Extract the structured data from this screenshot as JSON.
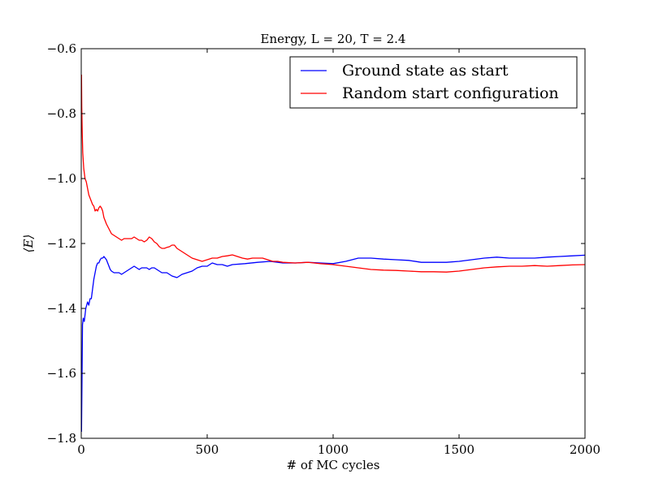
{
  "chart_data": {
    "type": "line",
    "title": "Energy, L = 20, T = 2.4",
    "xlabel": "# of MC cycles",
    "ylabel": "⟨E⟩",
    "xlim": [
      0,
      2000
    ],
    "ylim": [
      -1.8,
      -0.6
    ],
    "xticks": [
      0,
      500,
      1000,
      1500,
      2000
    ],
    "yticks": [
      -1.8,
      -1.6,
      -1.4,
      -1.2,
      -1.0,
      -0.8,
      -0.6
    ],
    "xtick_labels": [
      "0",
      "500",
      "1000",
      "1500",
      "2000"
    ],
    "ytick_labels": [
      "−1.8",
      "−1.6",
      "−1.4",
      "−1.2",
      "−1.0",
      "−0.8",
      "−0.6"
    ],
    "grid": false,
    "legend_position": "top-right",
    "series": [
      {
        "name": "Ground state as start",
        "color": "#0000ff",
        "x": [
          1,
          3,
          5,
          8,
          12,
          18,
          25,
          30,
          35,
          40,
          45,
          50,
          55,
          60,
          65,
          70,
          75,
          80,
          85,
          90,
          95,
          100,
          105,
          110,
          115,
          120,
          130,
          140,
          150,
          160,
          170,
          180,
          190,
          200,
          210,
          220,
          230,
          240,
          250,
          260,
          270,
          280,
          290,
          300,
          320,
          340,
          360,
          380,
          400,
          420,
          440,
          460,
          480,
          500,
          520,
          540,
          560,
          580,
          600,
          650,
          700,
          750,
          800,
          850,
          900,
          950,
          1000,
          1050,
          1100,
          1150,
          1200,
          1250,
          1300,
          1350,
          1400,
          1450,
          1500,
          1550,
          1600,
          1650,
          1700,
          1750,
          1800,
          1850,
          1900,
          1950,
          2000
        ],
        "y": [
          -1.78,
          -1.62,
          -1.45,
          -1.43,
          -1.44,
          -1.4,
          -1.38,
          -1.39,
          -1.37,
          -1.37,
          -1.34,
          -1.31,
          -1.29,
          -1.27,
          -1.26,
          -1.26,
          -1.25,
          -1.245,
          -1.245,
          -1.24,
          -1.245,
          -1.25,
          -1.26,
          -1.27,
          -1.28,
          -1.285,
          -1.29,
          -1.29,
          -1.29,
          -1.295,
          -1.29,
          -1.285,
          -1.28,
          -1.275,
          -1.27,
          -1.275,
          -1.28,
          -1.275,
          -1.275,
          -1.275,
          -1.28,
          -1.275,
          -1.275,
          -1.28,
          -1.29,
          -1.29,
          -1.3,
          -1.305,
          -1.295,
          -1.29,
          -1.285,
          -1.275,
          -1.27,
          -1.27,
          -1.26,
          -1.265,
          -1.265,
          -1.27,
          -1.265,
          -1.262,
          -1.258,
          -1.255,
          -1.26,
          -1.26,
          -1.258,
          -1.26,
          -1.262,
          -1.255,
          -1.245,
          -1.245,
          -1.248,
          -1.25,
          -1.252,
          -1.258,
          -1.258,
          -1.258,
          -1.255,
          -1.25,
          -1.245,
          -1.242,
          -1.245,
          -1.245,
          -1.245,
          -1.242,
          -1.24,
          -1.238,
          -1.236
        ]
      },
      {
        "name": "Random start configuration",
        "color": "#ff0000",
        "x": [
          1,
          2,
          4,
          6,
          10,
          15,
          20,
          25,
          30,
          35,
          40,
          45,
          50,
          55,
          60,
          65,
          70,
          75,
          80,
          85,
          90,
          95,
          100,
          110,
          120,
          130,
          140,
          150,
          160,
          170,
          180,
          190,
          200,
          210,
          220,
          230,
          240,
          250,
          260,
          270,
          280,
          290,
          300,
          310,
          320,
          330,
          340,
          350,
          360,
          370,
          380,
          400,
          420,
          440,
          460,
          480,
          500,
          520,
          540,
          560,
          580,
          600,
          620,
          640,
          660,
          680,
          700,
          720,
          740,
          760,
          780,
          800,
          850,
          900,
          950,
          1000,
          1050,
          1100,
          1150,
          1200,
          1250,
          1300,
          1350,
          1400,
          1450,
          1500,
          1550,
          1600,
          1650,
          1700,
          1750,
          1800,
          1850,
          1900,
          1950,
          2000
        ],
        "y": [
          -0.68,
          -0.78,
          -0.86,
          -0.92,
          -0.97,
          -1.0,
          -1.01,
          -1.03,
          -1.05,
          -1.06,
          -1.07,
          -1.08,
          -1.085,
          -1.1,
          -1.095,
          -1.1,
          -1.09,
          -1.085,
          -1.09,
          -1.1,
          -1.12,
          -1.13,
          -1.14,
          -1.155,
          -1.17,
          -1.175,
          -1.18,
          -1.185,
          -1.19,
          -1.185,
          -1.185,
          -1.185,
          -1.185,
          -1.18,
          -1.185,
          -1.19,
          -1.19,
          -1.195,
          -1.19,
          -1.18,
          -1.185,
          -1.195,
          -1.2,
          -1.21,
          -1.215,
          -1.215,
          -1.212,
          -1.21,
          -1.205,
          -1.205,
          -1.215,
          -1.225,
          -1.235,
          -1.245,
          -1.25,
          -1.255,
          -1.25,
          -1.245,
          -1.245,
          -1.24,
          -1.238,
          -1.235,
          -1.24,
          -1.245,
          -1.248,
          -1.245,
          -1.245,
          -1.245,
          -1.25,
          -1.255,
          -1.255,
          -1.258,
          -1.26,
          -1.258,
          -1.262,
          -1.265,
          -1.27,
          -1.275,
          -1.28,
          -1.282,
          -1.283,
          -1.285,
          -1.287,
          -1.287,
          -1.288,
          -1.285,
          -1.28,
          -1.275,
          -1.272,
          -1.27,
          -1.27,
          -1.268,
          -1.27,
          -1.268,
          -1.266,
          -1.265
        ]
      }
    ]
  }
}
